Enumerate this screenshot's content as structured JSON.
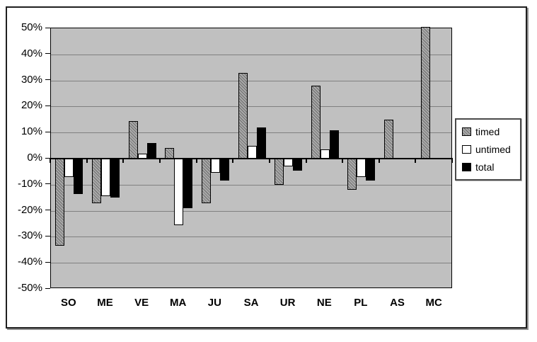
{
  "chart_data": {
    "type": "bar",
    "title": "",
    "xlabel": "",
    "ylabel": "",
    "categories": [
      "SO",
      "ME",
      "VE",
      "MA",
      "JU",
      "SA",
      "UR",
      "NE",
      "PL",
      "AS",
      "MC"
    ],
    "series": [
      {
        "name": "timed",
        "values": [
          -33.5,
          -17.0,
          14.5,
          4.0,
          -17.0,
          33.0,
          -10.0,
          28.0,
          -12.0,
          15.0,
          50.5
        ]
      },
      {
        "name": "untimed",
        "values": [
          -7.0,
          -14.5,
          2.0,
          -25.5,
          -5.5,
          5.0,
          -3.0,
          3.5,
          -7.0,
          0.0,
          0.0
        ]
      },
      {
        "name": "total",
        "values": [
          -13.5,
          -15.0,
          6.0,
          -19.0,
          -8.5,
          12.0,
          -4.5,
          11.0,
          -8.5,
          0.0,
          0.0
        ]
      }
    ],
    "ylim": [
      -50,
      50
    ],
    "ytick_step": 10,
    "ytick_labels": [
      "50%",
      "40%",
      "30%",
      "20%",
      "10%",
      "0%",
      "-10%",
      "-20%",
      "-30%",
      "-40%",
      "-50%"
    ],
    "grid": true,
    "legend_position": "right",
    "legend_entries": [
      "timed",
      "untimed",
      "total"
    ],
    "colors": {
      "plot_background": "#c0c0c0",
      "gridline": "#808080",
      "axis": "#000000",
      "timed_fill": "#8f8f8f",
      "timed_hatch": "#6d6d6d",
      "untimed_fill": "#ffffff",
      "total_fill": "#000000",
      "frame_border": "#1f1f1f"
    }
  }
}
